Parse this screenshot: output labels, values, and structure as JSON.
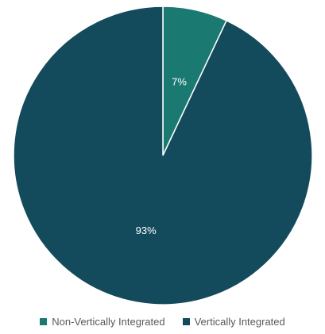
{
  "chart_data": {
    "type": "pie",
    "title": "",
    "start_angle_deg": 0,
    "direction": "clockwise",
    "slices": [
      {
        "name": "Non-Vertically Integrated",
        "value": 7,
        "label": "7%",
        "color": "#1a7a72"
      },
      {
        "name": "Vertically Integrated",
        "value": 93,
        "label": "93%",
        "color": "#144b5c"
      }
    ],
    "legend_position": "bottom"
  }
}
